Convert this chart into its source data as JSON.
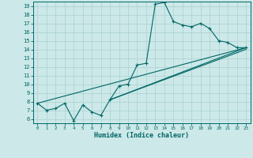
{
  "xlabel": "Humidex (Indice chaleur)",
  "background_color": "#cce8e8",
  "grid_color": "#b0d4d4",
  "line_color": "#006666",
  "xlim": [
    -0.5,
    23.5
  ],
  "ylim": [
    5.5,
    19.5
  ],
  "xticks": [
    0,
    1,
    2,
    3,
    4,
    5,
    6,
    7,
    8,
    9,
    10,
    11,
    12,
    13,
    14,
    15,
    16,
    17,
    18,
    19,
    20,
    21,
    22,
    23
  ],
  "yticks": [
    6,
    7,
    8,
    9,
    10,
    11,
    12,
    13,
    14,
    15,
    16,
    17,
    18,
    19
  ],
  "curve1_x": [
    0,
    1,
    2,
    3,
    4,
    5,
    6,
    7,
    8,
    9,
    10,
    11,
    12,
    13,
    14,
    15,
    16,
    17,
    18,
    19,
    20,
    21,
    22,
    23
  ],
  "curve1_y": [
    7.8,
    7.0,
    7.2,
    7.8,
    5.8,
    7.6,
    6.8,
    6.4,
    8.2,
    9.8,
    10.0,
    12.2,
    12.4,
    19.2,
    19.4,
    17.2,
    16.8,
    16.6,
    17.0,
    16.4,
    15.0,
    14.8,
    14.2,
    14.2
  ],
  "line1_x": [
    0,
    23
  ],
  "line1_y": [
    7.8,
    14.2
  ],
  "line2_x": [
    8,
    23
  ],
  "line2_y": [
    8.2,
    14.2
  ],
  "line3_x": [
    8,
    23
  ],
  "line3_y": [
    8.2,
    14.0
  ]
}
